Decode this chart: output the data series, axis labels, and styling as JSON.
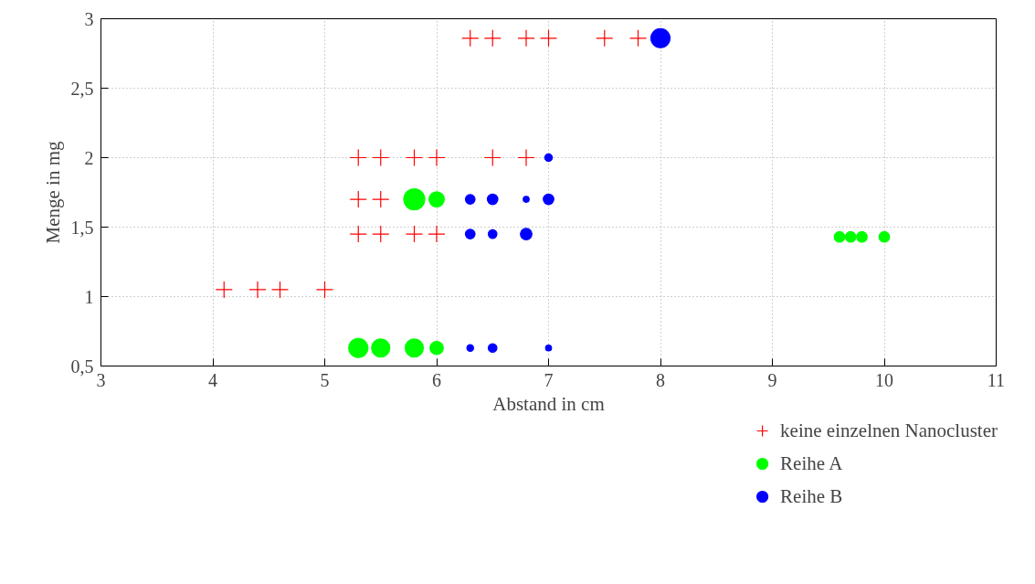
{
  "chart_data": {
    "type": "scatter",
    "xlabel": "Abstand in cm",
    "ylabel": "Menge in mg",
    "xlim": [
      3,
      11
    ],
    "xticks": [
      3,
      4,
      5,
      6,
      7,
      8,
      9,
      10,
      11
    ],
    "ylim": [
      0.5,
      3
    ],
    "yticks": [
      {
        "value": 0.5,
        "label": "0,5"
      },
      1,
      {
        "value": 1.5,
        "label": "1,5"
      },
      2,
      {
        "value": 2.5,
        "label": "2,5"
      },
      3
    ],
    "grid": true,
    "legend": "bottom right",
    "series": [
      {
        "name": "keine einzelnen Nanocluster",
        "marker": "cross",
        "color": "#ff0000",
        "x": [
          6.3,
          6.5,
          6.8,
          7.0,
          7.5,
          7.8,
          5.3,
          5.5,
          5.8,
          6.0,
          6.5,
          6.8,
          5.3,
          5.5,
          5.3,
          5.5,
          5.8,
          6.0,
          4.1,
          4.4,
          4.6,
          5.0
        ],
        "values": [
          2.86,
          2.86,
          2.86,
          2.86,
          2.86,
          2.86,
          2,
          2,
          2,
          2,
          2,
          2,
          1.7,
          1.7,
          1.45,
          1.45,
          1.45,
          1.45,
          1.05,
          1.05,
          1.05,
          1.05
        ]
      },
      {
        "name": "Reihe A",
        "type": "bubble",
        "marker": "circle",
        "color": "#00ff00",
        "x": [
          5.8,
          6.0,
          9.6,
          9.7,
          9.8,
          10.0,
          5.3,
          5.5,
          5.8,
          6.0
        ],
        "values": [
          1.7,
          1.7,
          1.43,
          1.43,
          1.43,
          1.43,
          0.63,
          0.63,
          0.63,
          0.63
        ],
        "sizes": [
          1,
          0.53,
          0.25,
          0.25,
          0.25,
          0.25,
          0.83,
          0.75,
          0.75,
          0.4
        ]
      },
      {
        "name": "Reihe B",
        "type": "bubble",
        "marker": "circle",
        "color": "#0000ff",
        "x": [
          8.0,
          7.0,
          6.3,
          6.5,
          6.8,
          7.0,
          6.3,
          6.5,
          6.8,
          6.3,
          6.5,
          7.0
        ],
        "values": [
          2.86,
          2,
          1.7,
          1.7,
          1.7,
          1.7,
          1.45,
          1.45,
          1.45,
          0.63,
          0.63,
          0.63
        ],
        "sizes": [
          0.83,
          0.13,
          0.21,
          0.25,
          0.08,
          0.25,
          0.21,
          0.17,
          0.3,
          0.1,
          0.17,
          0.08
        ]
      }
    ]
  }
}
